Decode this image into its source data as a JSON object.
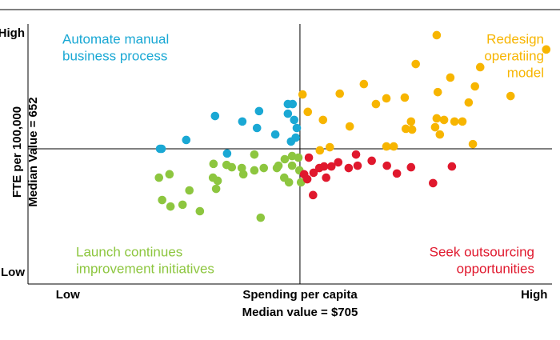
{
  "chart_data": {
    "type": "scatter",
    "xlim": [
      0,
      100
    ],
    "ylim": [
      0,
      100
    ],
    "xticks": [
      {
        "value": 7.6,
        "label": "Low"
      },
      {
        "value": 96.6,
        "label": "High"
      }
    ],
    "yticks": [
      {
        "value": 4.3,
        "label": "Low"
      },
      {
        "value": 96.3,
        "label": "High"
      }
    ],
    "x_median": 51.9,
    "y_median": 52.0,
    "x_label": [
      "Spending per capita",
      "Median value = $705"
    ],
    "y_label": [
      "FTE per 100,000",
      "Median Value = 652"
    ],
    "annotations": [
      {
        "lines": [
          "Automate manual",
          "business process"
        ],
        "position": "top-left",
        "color": "#1aa8d4"
      },
      {
        "lines": [
          "Redesign",
          "operatiing",
          "model"
        ],
        "position": "top-right",
        "color": "#f7b500"
      },
      {
        "lines": [
          "Launch continues",
          "improvement initiatives"
        ],
        "position": "bottom-left",
        "color": "#8dc63f"
      },
      {
        "lines": [
          "Seek outsourcing",
          "opportunities"
        ],
        "position": "bottom-right",
        "color": "#e0182d"
      }
    ],
    "series": [
      {
        "color": "#1aa8d4",
        "x": [
          25.2,
          25.5,
          30.2,
          35.7,
          40.9,
          43.7,
          38.0,
          44.1,
          47.2,
          49.6,
          50.5,
          49.6,
          50.8,
          51.3,
          51.1,
          50.2
        ],
        "values": [
          52.0,
          52.0,
          55.4,
          64.6,
          62.5,
          60.0,
          50.2,
          66.5,
          57.5,
          69.2,
          69.2,
          65.5,
          63.1,
          60.0,
          56.3,
          54.8
        ]
      },
      {
        "color": "#8dc63f",
        "x": [
          25.6,
          27.2,
          29.5,
          32.8,
          27.0,
          25.0,
          30.8,
          35.3,
          35.4,
          35.9,
          36.2,
          37.9,
          40.8,
          38.9,
          41.1,
          43.2,
          43.2,
          45.0,
          44.4,
          47.8,
          49.0,
          47.5,
          49.8,
          48.9,
          50.4,
          50.4,
          51.6,
          51.8,
          52.1
        ],
        "values": [
          32.3,
          29.8,
          30.5,
          28.0,
          42.2,
          40.9,
          36.0,
          40.9,
          46.2,
          36.6,
          39.7,
          45.8,
          44.6,
          44.9,
          42.2,
          49.8,
          43.7,
          44.6,
          25.5,
          45.5,
          48.0,
          44.6,
          39.1,
          40.9,
          45.5,
          49.2,
          48.6,
          43.7,
          39.1
        ]
      },
      {
        "color": "#f7b500",
        "x": [
          78.0,
          98.9,
          86.3,
          52.4,
          53.4,
          59.5,
          64.1,
          74.0,
          66.4,
          68.4,
          71.9,
          78.2,
          80.6,
          92.1,
          85.3,
          84.1,
          78.0,
          79.4,
          81.4,
          82.9,
          73.1,
          72.1,
          73.3,
          61.4,
          56.3,
          68.4,
          77.7,
          78.6,
          84.9,
          57.6,
          55.7,
          69.8
        ],
        "values": [
          95.7,
          90.2,
          83.4,
          72.9,
          66.2,
          73.2,
          76.9,
          84.6,
          69.2,
          71.4,
          71.7,
          73.8,
          79.4,
          72.3,
          76.0,
          69.8,
          63.7,
          63.1,
          62.5,
          62.5,
          62.5,
          59.7,
          59.4,
          60.6,
          63.1,
          52.9,
          60.3,
          57.5,
          53.8,
          52.6,
          51.4,
          52.9
        ]
      },
      {
        "color": "#e0182d",
        "x": [
          53.6,
          54.5,
          55.6,
          56.5,
          56.9,
          57.9,
          52.7,
          54.4,
          59.2,
          61.2,
          62.9,
          62.6,
          65.6,
          68.5,
          70.4,
          73.1,
          77.3,
          80.9,
          53.3
        ],
        "values": [
          48.6,
          42.8,
          44.6,
          45.2,
          40.9,
          45.2,
          42.2,
          34.2,
          46.8,
          44.6,
          45.5,
          49.8,
          47.4,
          45.5,
          42.5,
          44.9,
          38.8,
          45.2,
          40.3
        ]
      }
    ]
  }
}
